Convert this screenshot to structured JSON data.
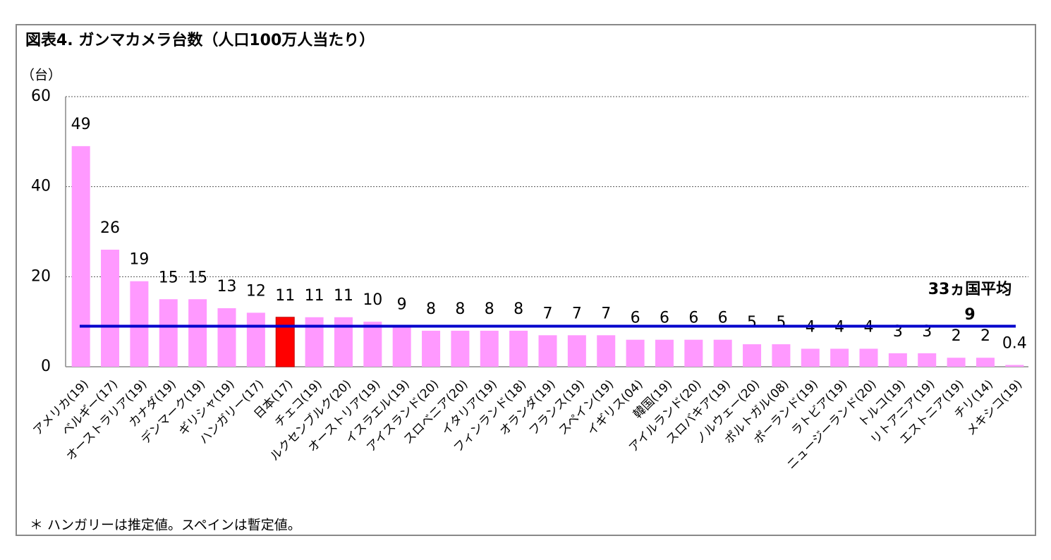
{
  "chart_data": {
    "type": "bar",
    "title": "図表4. ガンマカメラ台数（人口100万人当たり）",
    "y_label": "（台）",
    "footnote": "＊ ハンガリーは推定値。スペインは暫定値。",
    "categories": [
      "アメリカ(19)",
      "ベルギー(17)",
      "オーストラリア(19)",
      "カナダ(19)",
      "デンマーク(19)",
      "ギリシャ(19)",
      "ハンガリー(17)",
      "日本(17)",
      "チェコ(19)",
      "ルクセンブルク(20)",
      "オーストリア(19)",
      "イスラエル(19)",
      "アイスランド(20)",
      "スロベニア(20)",
      "イタリア(19)",
      "フィンランド(18)",
      "オランダ(19)",
      "フランス(19)",
      "スペイン(19)",
      "イギリス(04)",
      "韓国(19)",
      "アイルランド(20)",
      "スロバキア(19)",
      "ノルウェー(20)",
      "ポルトガル(08)",
      "ポーランド(19)",
      "ラトビア(19)",
      "ニュージーランド(20)",
      "トルコ(19)",
      "リトアニア(19)",
      "エストニア(19)",
      "チリ(14)",
      "メキシコ(19)"
    ],
    "values": [
      49,
      26,
      19,
      15,
      15,
      13,
      12,
      11,
      11,
      11,
      10,
      9,
      8,
      8,
      8,
      8,
      7,
      7,
      7,
      6,
      6,
      6,
      6,
      5,
      5,
      4,
      4,
      4,
      3,
      3,
      2,
      2,
      0.4
    ],
    "color": "#ff99ff",
    "highlight_category": "日本(17)",
    "highlight_color": "#ff0000",
    "average": {
      "label": "33ヵ国平均",
      "value": 9,
      "color": "#0000cc"
    },
    "ylim": [
      0,
      60
    ],
    "yticks": [
      0,
      20,
      40,
      60
    ],
    "grid": true
  }
}
